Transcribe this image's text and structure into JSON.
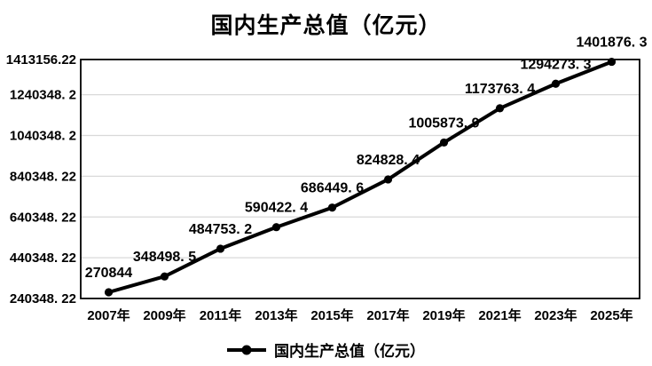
{
  "chart_data": {
    "type": "line",
    "title": "国内生产总值（亿元）",
    "categories": [
      "2007年",
      "2009年",
      "2011年",
      "2013年",
      "2015年",
      "2017年",
      "2019年",
      "2021年",
      "2023年",
      "2025年"
    ],
    "series": [
      {
        "name": "国内生产总值（亿元）",
        "values": [
          270844,
          348498.5,
          484753.2,
          590422.4,
          686449.6,
          824828.4,
          1005873.9,
          1173763.4,
          1294273.3,
          1401876.3
        ]
      }
    ],
    "point_labels": [
      "270844",
      "348498. 5",
      "484753. 2",
      "590422. 4",
      "686449. 6",
      "824828. 4",
      "1005873. 9",
      "1173763. 4",
      "1294273. 3",
      "1401876. 3"
    ],
    "xlabel": "",
    "ylabel": "",
    "y_axis": {
      "min": 240348.22,
      "max": 1413156.22,
      "tick_values": [
        240348.22,
        440348.22,
        640348.22,
        840348.22,
        1040348.2,
        1240348.2,
        1413156.22
      ],
      "tick_labels": [
        "240348. 22",
        "440348. 22",
        "640348. 22",
        "840348. 22",
        "1040348. 2",
        "1240348. 2",
        "1413156.22"
      ]
    },
    "grid": true,
    "legend": {
      "position": "bottom",
      "label": "国内生产总值（亿元）"
    },
    "colors": {
      "line": "#000000",
      "marker": "#000000",
      "gridline": "#d9d9d9",
      "border": "#000000",
      "text": "#000000",
      "background": "#ffffff"
    }
  }
}
